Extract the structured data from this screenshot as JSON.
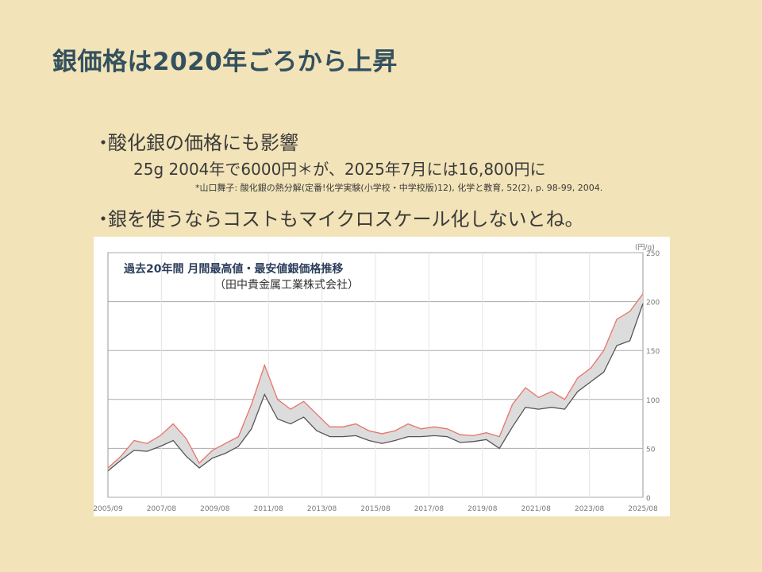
{
  "slide": {
    "title": "銀価格は2020年ごろから上昇",
    "bullet1": "酸化銀の価格にも影響",
    "bullet1_sub": "25g 2004年で6000円＊が、2025年7月には16,800円に",
    "reference": "*山口舞子: 酸化銀の熱分解(定番!化学実験(小学校・中学校版)12), 化学と教育, 52(2), p. 98-99, 2004.",
    "bullet2": "銀を使うならコストもマイクロスケール化しないとね。",
    "bullet_marker": "・"
  },
  "chart_data": {
    "type": "area",
    "title": "過去20年間 月間最高値・最安値銀価格推移",
    "subtitle": "（田中貴金属工業株式会社）",
    "unit_label": "(円/g)",
    "xlabel": "",
    "ylabel": "",
    "ylim": [
      0,
      250
    ],
    "yticks": [
      0,
      50,
      100,
      150,
      200,
      250
    ],
    "x_tick_labels": [
      "2005/09",
      "2007/08",
      "2009/08",
      "2011/08",
      "2013/08",
      "2015/08",
      "2017/08",
      "2019/08",
      "2021/08",
      "2023/08",
      "2025/08"
    ],
    "grid": true,
    "colors": {
      "high": "#e8736a",
      "low": "#555555",
      "band": "#dcdcdc"
    },
    "x": [
      "2005/09",
      "2006/03",
      "2006/09",
      "2007/03",
      "2007/09",
      "2008/03",
      "2008/09",
      "2009/03",
      "2009/09",
      "2010/03",
      "2010/09",
      "2011/03",
      "2011/06",
      "2011/09",
      "2012/03",
      "2012/09",
      "2013/03",
      "2013/09",
      "2014/03",
      "2014/09",
      "2015/03",
      "2015/09",
      "2016/03",
      "2016/09",
      "2017/03",
      "2017/09",
      "2018/03",
      "2018/09",
      "2019/03",
      "2019/09",
      "2020/03",
      "2020/09",
      "2021/03",
      "2021/09",
      "2022/03",
      "2022/09",
      "2023/03",
      "2023/09",
      "2024/03",
      "2024/09",
      "2025/03",
      "2025/08"
    ],
    "series": [
      {
        "key": "high",
        "values": [
          30,
          42,
          58,
          55,
          63,
          75,
          60,
          35,
          48,
          55,
          62,
          95,
          135,
          100,
          90,
          98,
          85,
          72,
          72,
          75,
          68,
          65,
          68,
          75,
          70,
          72,
          70,
          64,
          63,
          66,
          62,
          95,
          112,
          102,
          108,
          100,
          122,
          132,
          150,
          182,
          190,
          208
        ]
      },
      {
        "key": "low",
        "values": [
          27,
          38,
          48,
          47,
          52,
          58,
          42,
          30,
          40,
          45,
          52,
          70,
          105,
          80,
          75,
          82,
          68,
          62,
          62,
          63,
          58,
          55,
          58,
          62,
          62,
          63,
          62,
          56,
          57,
          59,
          50,
          72,
          92,
          90,
          92,
          90,
          108,
          118,
          128,
          155,
          160,
          198
        ]
      }
    ]
  }
}
